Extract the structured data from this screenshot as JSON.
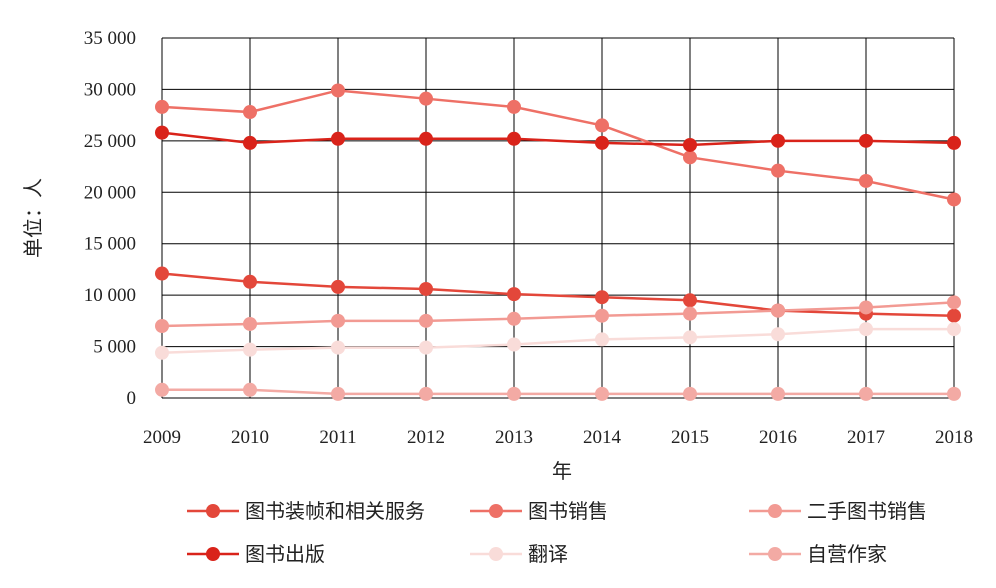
{
  "chart_data": {
    "type": "line",
    "title": "",
    "xlabel": "年",
    "ylabel": "单位：人",
    "ylim": [
      0,
      35000
    ],
    "yticks": [
      0,
      5000,
      10000,
      15000,
      20000,
      25000,
      30000,
      35000
    ],
    "ytick_labels": [
      "0",
      "5 000",
      "10 000",
      "15 000",
      "20 000",
      "25 000",
      "30 000",
      "35 000"
    ],
    "x": [
      "2009",
      "2010",
      "2011",
      "2012",
      "2013",
      "2014",
      "2015",
      "2016",
      "2017",
      "2018"
    ],
    "grid": true,
    "legend_position": "bottom",
    "series": [
      {
        "name": "图书装帧和相关服务",
        "color": "#e3473a",
        "values": [
          12100,
          11300,
          10800,
          10600,
          10100,
          9800,
          9500,
          8500,
          8200,
          8000
        ]
      },
      {
        "name": "图书销售",
        "color": "#ee7066",
        "values": [
          28300,
          27800,
          29900,
          29100,
          28300,
          26500,
          23400,
          22100,
          21100,
          19300
        ]
      },
      {
        "name": "二手图书销售",
        "color": "#f29a93",
        "values": [
          7000,
          7200,
          7500,
          7500,
          7700,
          8000,
          8200,
          8500,
          8800,
          9300
        ]
      },
      {
        "name": "图书出版",
        "color": "#d9231a",
        "values": [
          25800,
          24800,
          25200,
          25200,
          25200,
          24800,
          24600,
          25000,
          25000,
          24800
        ]
      },
      {
        "name": "翻译",
        "color": "#f9dcd9",
        "values": [
          4400,
          4700,
          4900,
          4900,
          5200,
          5700,
          5900,
          6200,
          6700,
          6700
        ]
      },
      {
        "name": "自营作家",
        "color": "#f3aaa4",
        "values": [
          800,
          800,
          400,
          400,
          400,
          400,
          400,
          400,
          400,
          400
        ]
      }
    ]
  }
}
